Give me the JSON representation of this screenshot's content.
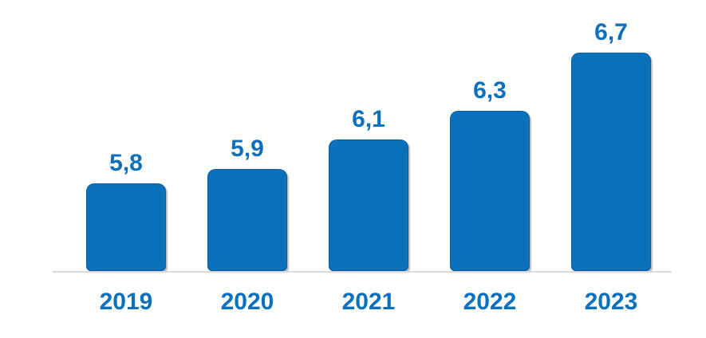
{
  "chart": {
    "background_color": "#ffffff",
    "bar_color": "#0B71BD",
    "bar_edge_color": "rgba(8,70,115,0.45)",
    "bar_shadow_color": "rgba(96,110,122,0.45)",
    "label_color": "#0C70BE",
    "axis_line_color": "#D9D9D9"
  },
  "chart_data": {
    "type": "bar",
    "categories": [
      "2019",
      "2020",
      "2021",
      "2022",
      "2023"
    ],
    "values": [
      5.8,
      5.9,
      6.1,
      6.3,
      6.7
    ],
    "value_labels": [
      "5,8",
      "5,9",
      "6,1",
      "6,3",
      "6,7"
    ],
    "decimal_separator": ",",
    "title": "",
    "xlabel": "",
    "ylabel": "",
    "ylim": [
      5.2,
      6.9
    ],
    "grid": false,
    "legend": false,
    "y_axis_visible": false,
    "x_axis_line": true
  }
}
